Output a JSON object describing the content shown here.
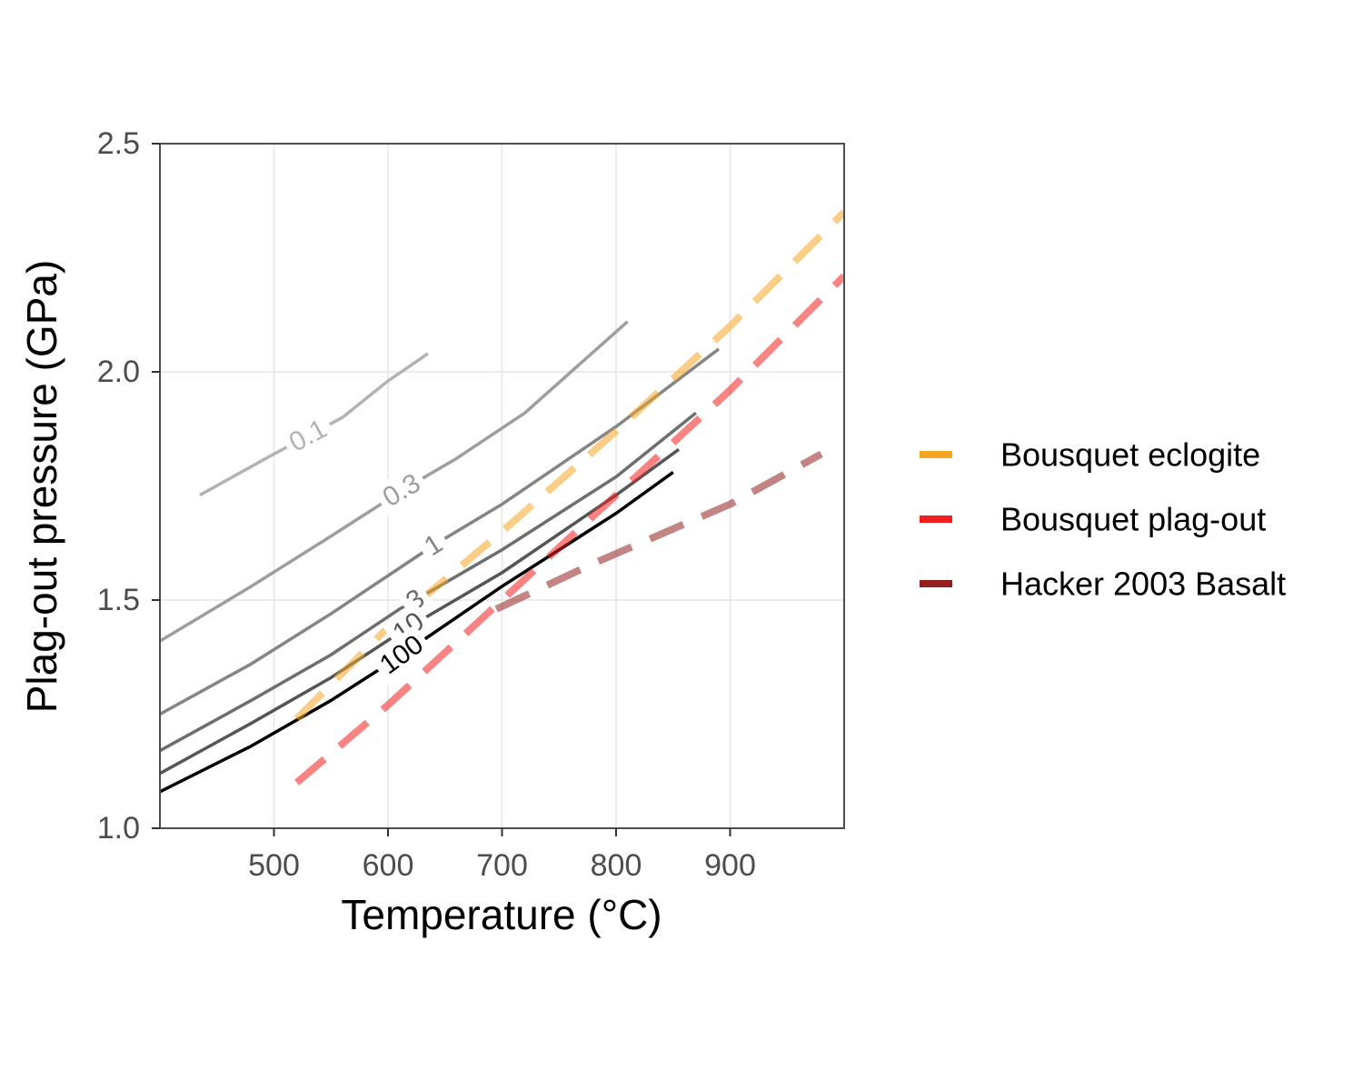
{
  "chart_data": {
    "type": "line",
    "xlabel": "Temperature (°C)",
    "ylabel": "Plag-out pressure (GPa)",
    "xlim": [
      400,
      1000
    ],
    "ylim": [
      1.0,
      2.5
    ],
    "x_ticks": [
      500,
      600,
      700,
      800,
      900
    ],
    "y_ticks": [
      "1.0",
      "1.5",
      "2.0",
      "2.5"
    ],
    "grid": true,
    "legend_position": "right",
    "contours": [
      {
        "label": "0.1",
        "color": "#b3b3b3",
        "label_at": [
          530,
          1.86
        ],
        "label_angle": -28,
        "x": [
          435,
          500,
          530,
          560,
          600,
          635
        ],
        "y": [
          1.73,
          1.82,
          1.86,
          1.9,
          1.98,
          2.04
        ]
      },
      {
        "label": "0.3",
        "color": "#9e9e9e",
        "label_at": [
          612,
          1.74
        ],
        "label_angle": -30,
        "x": [
          400,
          480,
          550,
          600,
          612,
          660,
          720,
          810
        ],
        "y": [
          1.41,
          1.53,
          1.64,
          1.72,
          1.74,
          1.81,
          1.91,
          2.11
        ]
      },
      {
        "label": "1",
        "color": "#858585",
        "label_at": [
          640,
          1.62
        ],
        "label_angle": -32,
        "x": [
          400,
          480,
          550,
          610,
          640,
          700,
          800,
          890
        ],
        "y": [
          1.25,
          1.36,
          1.47,
          1.57,
          1.62,
          1.71,
          1.88,
          2.05
        ]
      },
      {
        "label": "3",
        "color": "#6e6e6e",
        "label_at": [
          624,
          1.5
        ],
        "label_angle": -34,
        "x": [
          400,
          480,
          550,
          610,
          624,
          700,
          800,
          870
        ],
        "y": [
          1.17,
          1.28,
          1.38,
          1.48,
          1.5,
          1.61,
          1.77,
          1.91
        ]
      },
      {
        "label": "10",
        "color": "#555555",
        "label_at": [
          618,
          1.44
        ],
        "label_angle": -36,
        "x": [
          400,
          480,
          550,
          605,
          618,
          700,
          800,
          855
        ],
        "y": [
          1.12,
          1.23,
          1.33,
          1.42,
          1.44,
          1.56,
          1.73,
          1.83
        ]
      },
      {
        "label": "100",
        "color": "#000000",
        "label_at": [
          612,
          1.38
        ],
        "label_angle": -36,
        "x": [
          400,
          480,
          550,
          600,
          612,
          700,
          800,
          850
        ],
        "y": [
          1.08,
          1.18,
          1.28,
          1.36,
          1.38,
          1.53,
          1.69,
          1.78
        ]
      }
    ],
    "series": [
      {
        "name": "Bousquet eclogite",
        "color": "#F5A623",
        "x": [
          520,
          600,
          700,
          800,
          900,
          1000
        ],
        "y": [
          1.24,
          1.44,
          1.65,
          1.87,
          2.1,
          2.35
        ]
      },
      {
        "name": "Bousquet plag-out",
        "color": "#F21E1E",
        "x": [
          520,
          600,
          700,
          800,
          900,
          1000
        ],
        "y": [
          1.1,
          1.27,
          1.5,
          1.73,
          1.96,
          2.21
        ]
      },
      {
        "name": "Hacker 2003 Basalt",
        "color": "#951F1F",
        "x": [
          695,
          780,
          900,
          980
        ],
        "y": [
          1.48,
          1.58,
          1.71,
          1.82
        ]
      }
    ]
  }
}
